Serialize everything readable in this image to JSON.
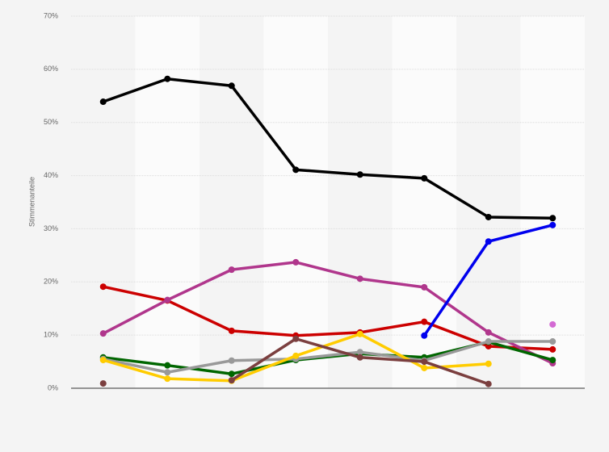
{
  "chart_data": {
    "type": "line",
    "y_axis_label": "Stimmenanteile",
    "categories": [
      null,
      null,
      null,
      null,
      null,
      null,
      null,
      null
    ],
    "ylim": [
      0,
      70
    ],
    "yticks": [
      {
        "value": 0,
        "label": "0%"
      },
      {
        "value": 10,
        "label": "10%"
      },
      {
        "value": 20,
        "label": "20%"
      },
      {
        "value": 30,
        "label": "30%"
      },
      {
        "value": 40,
        "label": "40%"
      },
      {
        "value": 50,
        "label": "50%"
      },
      {
        "value": 60,
        "label": "60%"
      },
      {
        "value": 70,
        "label": "70%"
      }
    ],
    "grid": true,
    "series": [
      {
        "color": "#000000",
        "values": [
          53.9,
          58.2,
          56.9,
          41.1,
          40.2,
          39.5,
          32.2,
          32.0
        ]
      },
      {
        "color": "#cc0000",
        "values": [
          19.1,
          16.5,
          10.8,
          9.9,
          10.5,
          12.5,
          7.9,
          7.3
        ]
      },
      {
        "color": "#b0368c",
        "values": [
          10.3,
          16.6,
          22.3,
          23.7,
          20.6,
          19.0,
          10.5,
          4.7
        ]
      },
      {
        "color": "#0000ee",
        "values": [
          null,
          null,
          null,
          null,
          null,
          9.9,
          27.6,
          30.7
        ]
      },
      {
        "color": "#006600",
        "values": [
          5.8,
          4.3,
          2.7,
          5.3,
          6.5,
          5.8,
          8.7,
          5.3
        ]
      },
      {
        "color": "#999999",
        "values": [
          5.5,
          3.0,
          5.2,
          5.5,
          6.8,
          5.2,
          8.8,
          8.8
        ]
      },
      {
        "color": "#ffcc00",
        "values": [
          5.3,
          1.8,
          1.4,
          6.1,
          10.2,
          3.8,
          4.6,
          null
        ]
      },
      {
        "color": "#7b3f3f",
        "values": [
          0.9,
          null,
          1.5,
          9.3,
          5.8,
          5.0,
          0.8,
          null
        ]
      },
      {
        "color": "#d36ad3",
        "values": [
          null,
          null,
          null,
          null,
          null,
          null,
          null,
          12.0
        ]
      }
    ]
  }
}
